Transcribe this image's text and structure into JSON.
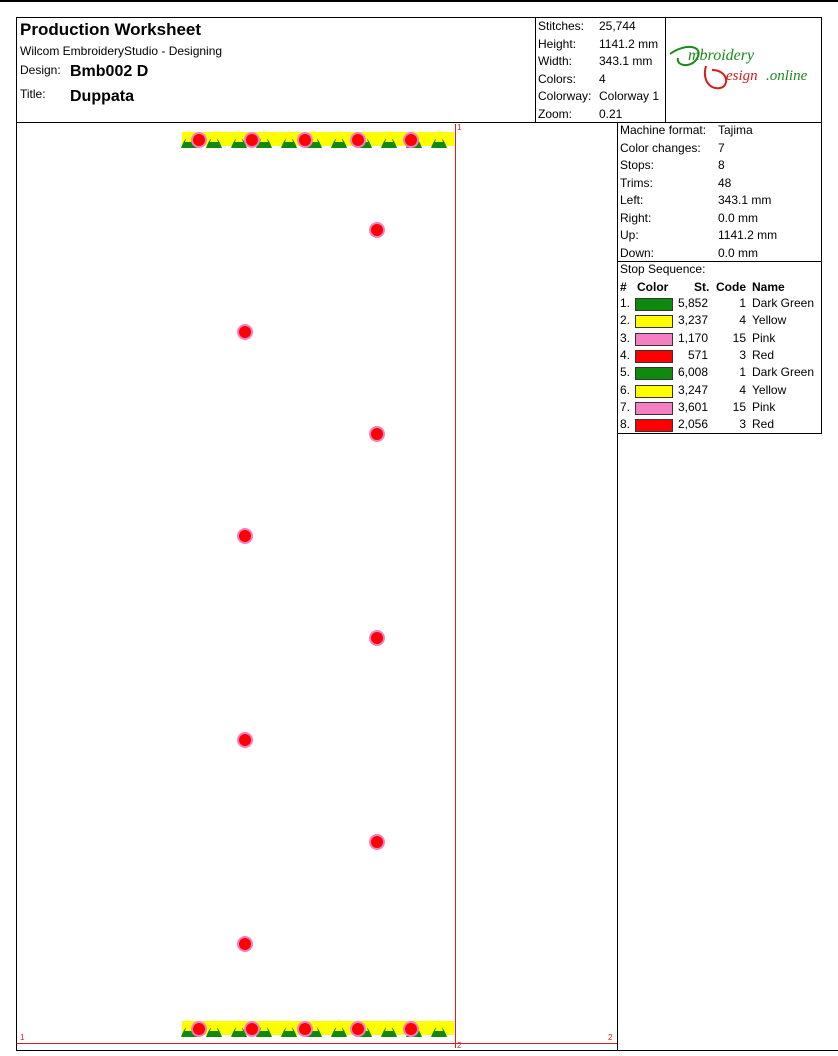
{
  "header": {
    "title": "Production Worksheet",
    "app_name": "Wilcom EmbroideryStudio - Designing",
    "design_label": "Design:",
    "design_value": "Bmb002 D",
    "title_label": "Title:",
    "title_value": "Duppata"
  },
  "stats": [
    {
      "label": "Stitches:",
      "value": "25,744"
    },
    {
      "label": "Height:",
      "value": "1141.2 mm"
    },
    {
      "label": "Width:",
      "value": "343.1 mm"
    },
    {
      "label": "Colors:",
      "value": "4"
    },
    {
      "label": "Colorway:",
      "value": "Colorway 1"
    },
    {
      "label": "Zoom:",
      "value": "0.21"
    }
  ],
  "logo": {
    "text_line1": "Embroidery",
    "text_line2": "Design.online",
    "colors": {
      "green": "#1a8a1a",
      "red": "#d81c1c"
    }
  },
  "machine": [
    {
      "label": "Machine format:",
      "value": "Tajima"
    },
    {
      "label": "Color changes:",
      "value": "7"
    },
    {
      "label": "Stops:",
      "value": "8"
    },
    {
      "label": "Trims:",
      "value": "48"
    },
    {
      "label": "Left:",
      "value": "343.1 mm"
    },
    {
      "label": "Right:",
      "value": "0.0 mm"
    },
    {
      "label": "Up:",
      "value": "1141.2 mm"
    },
    {
      "label": "Down:",
      "value": "0.0 mm"
    }
  ],
  "stop_sequence": {
    "title": "Stop Sequence:",
    "headers": {
      "num": "#",
      "color": "Color",
      "stitches": "St.",
      "code": "Code",
      "name": "Name"
    },
    "rows": [
      {
        "num": "1.",
        "swatch": "#0f8a0f",
        "stitches": "5,852",
        "code": "1",
        "name": "Dark Green"
      },
      {
        "num": "2.",
        "swatch": "#ffff00",
        "stitches": "3,237",
        "code": "4",
        "name": "Yellow"
      },
      {
        "num": "3.",
        "swatch": "#f47fc2",
        "stitches": "1,170",
        "code": "15",
        "name": "Pink"
      },
      {
        "num": "4.",
        "swatch": "#ff0000",
        "stitches": "571",
        "code": "3",
        "name": "Red"
      },
      {
        "num": "5.",
        "swatch": "#0f8a0f",
        "stitches": "6,008",
        "code": "1",
        "name": "Dark Green"
      },
      {
        "num": "6.",
        "swatch": "#ffff00",
        "stitches": "3,247",
        "code": "4",
        "name": "Yellow"
      },
      {
        "num": "7.",
        "swatch": "#f47fc2",
        "stitches": "3,601",
        "code": "15",
        "name": "Pink"
      },
      {
        "num": "8.",
        "swatch": "#ff0000",
        "stitches": "2,056",
        "code": "3",
        "name": "Red"
      }
    ]
  },
  "canvas": {
    "corner_marks": {
      "top_right": "1",
      "bottom_left": "1",
      "bottom_mid": "2",
      "bottom_right": "2"
    },
    "motif_colors": {
      "green": "#0f8a0f",
      "yellow": "#ffff00",
      "pink": "#f47fc2",
      "red": "#ff0000"
    }
  }
}
